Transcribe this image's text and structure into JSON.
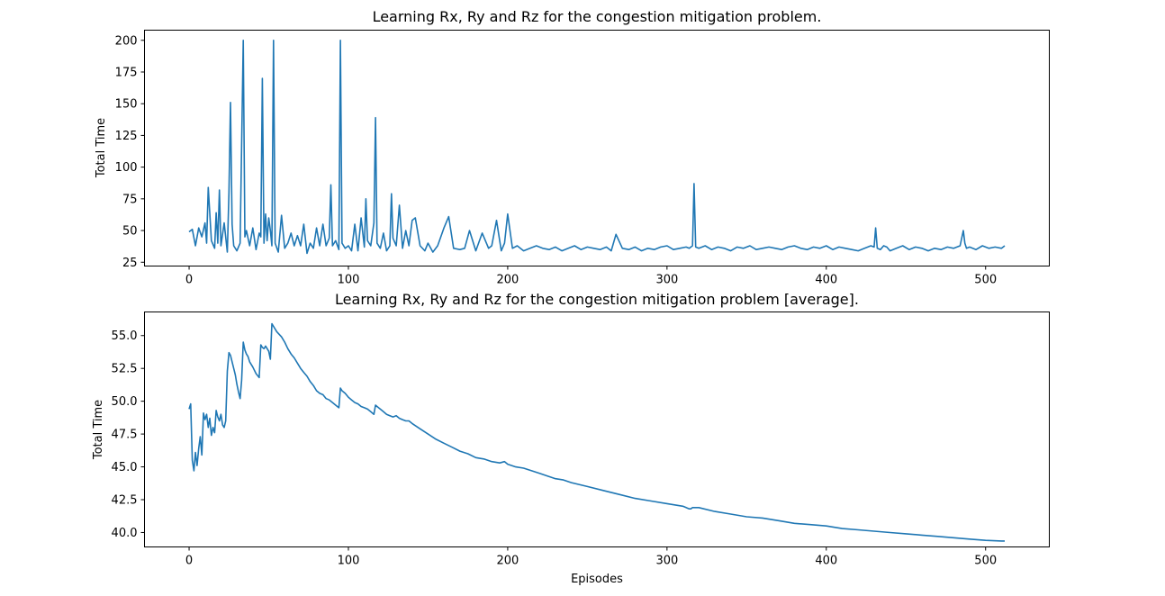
{
  "chart_data": [
    {
      "type": "line",
      "title": "Learning Rx, Ry and Rz for the congestion mitigation problem.",
      "xlabel": "",
      "ylabel": "Total Time",
      "xlim": [
        -28,
        540
      ],
      "ylim": [
        22,
        208
      ],
      "xticks": [
        0,
        100,
        200,
        300,
        400,
        500
      ],
      "yticks": [
        25,
        50,
        75,
        100,
        125,
        150,
        175,
        200
      ],
      "ytick_labels": [
        "25",
        "50",
        "75",
        "100",
        "125",
        "150",
        "175",
        "200"
      ],
      "grid": false,
      "series": [
        {
          "color": "#1f77b4",
          "x": [
            0,
            2,
            4,
            6,
            8,
            10,
            11,
            12,
            14,
            16,
            17,
            18,
            19,
            20,
            22,
            24,
            25,
            26,
            27,
            28,
            30,
            32,
            34,
            35,
            36,
            38,
            40,
            42,
            44,
            45,
            46,
            47,
            48,
            49,
            50,
            51,
            52,
            53,
            54,
            56,
            58,
            60,
            62,
            64,
            66,
            68,
            70,
            72,
            74,
            76,
            78,
            80,
            82,
            84,
            86,
            88,
            89,
            90,
            92,
            94,
            95,
            96,
            98,
            100,
            102,
            104,
            106,
            108,
            110,
            111,
            112,
            114,
            116,
            117,
            118,
            120,
            122,
            124,
            126,
            127,
            128,
            130,
            132,
            134,
            136,
            138,
            140,
            142,
            145,
            148,
            150,
            153,
            156,
            158,
            160,
            163,
            166,
            170,
            173,
            176,
            180,
            184,
            188,
            190,
            193,
            196,
            198,
            200,
            203,
            206,
            210,
            214,
            218,
            222,
            226,
            230,
            234,
            238,
            242,
            246,
            250,
            254,
            258,
            262,
            265,
            268,
            272,
            276,
            280,
            284,
            288,
            292,
            296,
            300,
            304,
            308,
            312,
            314,
            316,
            317,
            318,
            320,
            324,
            328,
            332,
            336,
            340,
            344,
            348,
            352,
            356,
            360,
            364,
            368,
            372,
            376,
            380,
            384,
            388,
            392,
            396,
            400,
            404,
            408,
            412,
            416,
            420,
            424,
            428,
            430,
            431,
            432,
            434,
            436,
            438,
            440,
            444,
            448,
            452,
            456,
            460,
            464,
            468,
            472,
            476,
            480,
            484,
            486,
            487,
            488,
            490,
            494,
            498,
            502,
            506,
            510,
            512
          ],
          "y": [
            49,
            51,
            38,
            52,
            45,
            56,
            40,
            84,
            42,
            36,
            64,
            40,
            82,
            38,
            56,
            33,
            80,
            151,
            55,
            38,
            34,
            40,
            200,
            45,
            50,
            38,
            52,
            35,
            48,
            45,
            170,
            40,
            63,
            42,
            60,
            50,
            38,
            200,
            40,
            33,
            62,
            36,
            40,
            48,
            38,
            46,
            38,
            55,
            32,
            40,
            36,
            52,
            38,
            55,
            38,
            44,
            86,
            38,
            42,
            35,
            200,
            40,
            36,
            38,
            34,
            55,
            34,
            60,
            37,
            75,
            42,
            38,
            56,
            139,
            40,
            36,
            48,
            34,
            38,
            79,
            44,
            38,
            70,
            36,
            50,
            38,
            58,
            60,
            38,
            34,
            40,
            33,
            38,
            45,
            52,
            61,
            36,
            35,
            36,
            50,
            34,
            48,
            36,
            38,
            58,
            34,
            40,
            63,
            36,
            38,
            34,
            36,
            38,
            36,
            35,
            37,
            34,
            36,
            38,
            35,
            37,
            36,
            35,
            37,
            34,
            47,
            36,
            35,
            37,
            34,
            36,
            35,
            37,
            38,
            35,
            36,
            37,
            36,
            38,
            87,
            37,
            36,
            38,
            35,
            37,
            36,
            34,
            37,
            36,
            38,
            35,
            36,
            37,
            36,
            35,
            37,
            38,
            36,
            35,
            37,
            36,
            38,
            35,
            37,
            36,
            35,
            34,
            36,
            38,
            37,
            52,
            36,
            35,
            38,
            37,
            34,
            36,
            38,
            35,
            37,
            36,
            34,
            36,
            35,
            37,
            36,
            38,
            50,
            40,
            36,
            37,
            35,
            38,
            36,
            37,
            36,
            38
          ]
        }
      ]
    },
    {
      "type": "line",
      "title": "Learning Rx, Ry and Rz for the congestion mitigation problem [average].",
      "xlabel": "Episodes",
      "ylabel": "Total Time",
      "xlim": [
        -28,
        540
      ],
      "ylim": [
        38.9,
        56.8
      ],
      "xticks": [
        0,
        100,
        200,
        300,
        400,
        500
      ],
      "yticks": [
        40.0,
        42.5,
        45.0,
        47.5,
        50.0,
        52.5,
        55.0
      ],
      "ytick_labels": [
        "40.0",
        "42.5",
        "45.0",
        "47.5",
        "50.0",
        "52.5",
        "55.0"
      ],
      "grid": false,
      "series": [
        {
          "color": "#1f77b4",
          "x": [
            0,
            1,
            2,
            3,
            4,
            5,
            6,
            7,
            8,
            9,
            10,
            11,
            12,
            13,
            14,
            15,
            16,
            17,
            18,
            19,
            20,
            21,
            22,
            23,
            24,
            25,
            26,
            27,
            28,
            29,
            30,
            31,
            32,
            33,
            34,
            35,
            36,
            37,
            38,
            40,
            42,
            44,
            45,
            46,
            47,
            48,
            50,
            51,
            52,
            53,
            55,
            58,
            60,
            62,
            64,
            66,
            68,
            70,
            72,
            74,
            76,
            78,
            80,
            82,
            84,
            86,
            88,
            90,
            92,
            94,
            95,
            96,
            98,
            100,
            102,
            104,
            106,
            108,
            110,
            112,
            114,
            116,
            117,
            118,
            120,
            122,
            124,
            126,
            128,
            130,
            132,
            134,
            136,
            138,
            140,
            145,
            150,
            155,
            160,
            165,
            170,
            175,
            180,
            185,
            190,
            195,
            198,
            200,
            205,
            210,
            215,
            220,
            225,
            230,
            235,
            240,
            250,
            260,
            270,
            280,
            290,
            300,
            310,
            314,
            315,
            316,
            320,
            330,
            340,
            350,
            360,
            370,
            380,
            390,
            400,
            410,
            420,
            430,
            440,
            450,
            460,
            470,
            480,
            490,
            500,
            510,
            512
          ],
          "y": [
            49.4,
            49.8,
            45.5,
            44.7,
            46.1,
            45.1,
            46.4,
            47.3,
            45.9,
            49.1,
            48.6,
            49.0,
            48.0,
            48.7,
            47.4,
            48.0,
            47.6,
            49.3,
            48.8,
            48.5,
            49.0,
            48.2,
            48.0,
            48.5,
            52.3,
            53.7,
            53.5,
            53.0,
            52.5,
            52.0,
            51.3,
            50.7,
            50.2,
            51.6,
            54.5,
            53.9,
            53.6,
            53.4,
            53.0,
            52.6,
            52.1,
            51.8,
            54.3,
            54.1,
            54.0,
            54.2,
            53.8,
            53.2,
            55.9,
            55.7,
            55.3,
            54.9,
            54.5,
            54.0,
            53.6,
            53.3,
            52.9,
            52.5,
            52.2,
            51.9,
            51.5,
            51.2,
            50.8,
            50.6,
            50.5,
            50.2,
            50.1,
            49.9,
            49.7,
            49.5,
            51.0,
            50.8,
            50.6,
            50.3,
            50.1,
            49.9,
            49.8,
            49.6,
            49.5,
            49.4,
            49.2,
            49.0,
            49.7,
            49.6,
            49.4,
            49.2,
            49.0,
            48.9,
            48.8,
            48.9,
            48.7,
            48.6,
            48.5,
            48.5,
            48.3,
            47.9,
            47.5,
            47.1,
            46.8,
            46.5,
            46.2,
            46.0,
            45.7,
            45.6,
            45.4,
            45.3,
            45.4,
            45.2,
            45.0,
            44.9,
            44.7,
            44.5,
            44.3,
            44.1,
            44.0,
            43.8,
            43.5,
            43.2,
            42.9,
            42.6,
            42.4,
            42.2,
            42.0,
            41.8,
            41.8,
            41.9,
            41.9,
            41.6,
            41.4,
            41.2,
            41.1,
            40.9,
            40.7,
            40.6,
            40.5,
            40.3,
            40.2,
            40.1,
            40.0,
            39.9,
            39.8,
            39.7,
            39.6,
            39.5,
            39.4,
            39.35,
            39.35
          ]
        }
      ]
    }
  ]
}
